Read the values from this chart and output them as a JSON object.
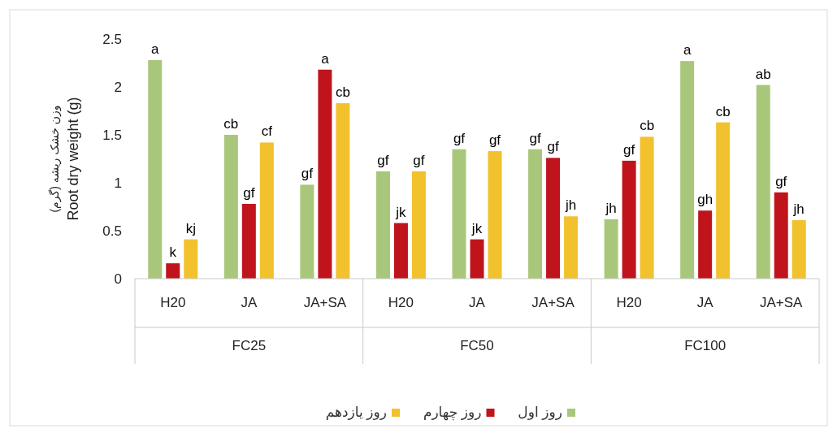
{
  "chart_data": {
    "type": "bar",
    "ylabel": "وزن خشک ریشه (گرم)\nRoot dry weight (g)",
    "categories": [
      "H20",
      "JA",
      "JA+SA",
      "H20",
      "JA",
      "JA+SA",
      "H20",
      "JA",
      "JA+SA"
    ],
    "annotations": [
      "FC25",
      "FC50",
      "FC100"
    ],
    "ylim": [
      0,
      2.5
    ],
    "yticks": [
      0,
      0.5,
      1,
      1.5,
      2,
      2.5
    ],
    "legend": "bottom",
    "series": [
      {
        "name": "روز اول",
        "color": "#a9c77a",
        "values": [
          2.28,
          1.5,
          0.98,
          1.12,
          1.35,
          1.35,
          0.62,
          2.27,
          2.02
        ],
        "value_labels": [
          "a",
          "cb",
          "gf",
          "gf",
          "gf",
          "gf",
          "jh",
          "a",
          "ab"
        ]
      },
      {
        "name": "روز چهارم",
        "color": "#c0141c",
        "values": [
          0.16,
          0.78,
          2.18,
          0.58,
          0.41,
          1.26,
          1.23,
          0.71,
          0.9
        ],
        "value_labels": [
          "k",
          "gf",
          "a",
          "jk",
          "jk",
          "gf",
          "gf",
          "gh",
          "gf"
        ]
      },
      {
        "name": "روز یازدهم",
        "color": "#f2c12e",
        "values": [
          0.41,
          1.42,
          1.83,
          1.12,
          1.33,
          0.65,
          1.48,
          1.63,
          0.61
        ],
        "value_labels": [
          "kj",
          "cf",
          "cb",
          "gf",
          "gf",
          "jh",
          "cb",
          "cb",
          "jh"
        ]
      }
    ]
  }
}
